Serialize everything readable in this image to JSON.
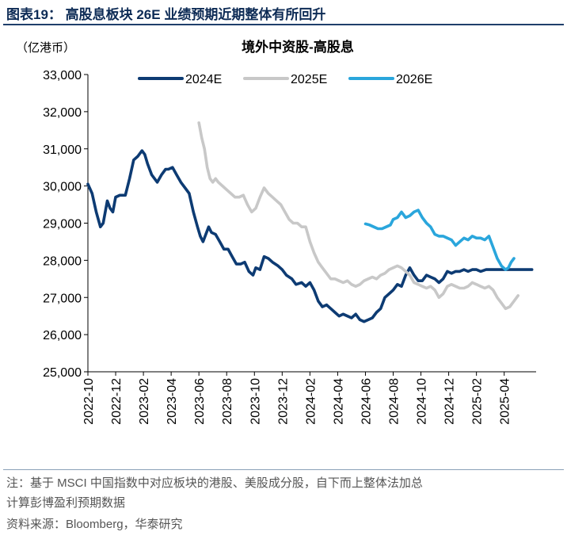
{
  "figure": {
    "title": "图表19：  高股息板块 26E 业绩预期近期整体有所回升",
    "note_line1": "注：基于 MSCI 中国指数中对应板块的港股、美股成分股，自下而上整体法加总",
    "note_line2": "计算彭博盈利预期数据",
    "source": "资料来源：Bloomberg，华泰研究"
  },
  "colors": {
    "s2024": "#0d3b73",
    "s2025": "#c8c8c8",
    "s2026": "#2aa6dc",
    "title": "#0d2b55"
  },
  "chart_data": {
    "type": "line",
    "title": "境外中资股-高股息",
    "ylabel": "（亿港币）",
    "ylim": [
      25000,
      33000
    ],
    "yticks": [
      "33,000",
      "32,000",
      "31,000",
      "30,000",
      "29,000",
      "28,000",
      "27,000",
      "26,000",
      "25,000"
    ],
    "ytick_values": [
      33000,
      32000,
      31000,
      30000,
      29000,
      28000,
      27000,
      26000,
      25000
    ],
    "xlim": [
      0,
      32.3
    ],
    "xticks": [
      "2022-10",
      "2022-12",
      "2023-02",
      "2023-04",
      "2023-06",
      "2023-08",
      "2023-10",
      "2023-12",
      "2024-02",
      "2024-04",
      "2024-06",
      "2024-08",
      "2024-10",
      "2024-12",
      "2025-02",
      "2025-04"
    ],
    "xtick_values": [
      0,
      2,
      4,
      6,
      8,
      10,
      12,
      14,
      16,
      18,
      20,
      22,
      24,
      26,
      28,
      30
    ],
    "legend_position": "top",
    "series": [
      {
        "name": "2024E",
        "points": [
          [
            0,
            30050
          ],
          [
            0.3,
            29800
          ],
          [
            0.6,
            29300
          ],
          [
            0.9,
            28900
          ],
          [
            1.1,
            29000
          ],
          [
            1.4,
            29600
          ],
          [
            1.6,
            29400
          ],
          [
            1.8,
            29300
          ],
          [
            2.0,
            29700
          ],
          [
            2.3,
            29750
          ],
          [
            2.7,
            29750
          ],
          [
            3.0,
            30200
          ],
          [
            3.3,
            30700
          ],
          [
            3.6,
            30800
          ],
          [
            3.9,
            30950
          ],
          [
            4.1,
            30850
          ],
          [
            4.3,
            30600
          ],
          [
            4.6,
            30300
          ],
          [
            5.0,
            30100
          ],
          [
            5.3,
            30300
          ],
          [
            5.6,
            30450
          ],
          [
            5.8,
            30450
          ],
          [
            6.1,
            30500
          ],
          [
            6.4,
            30300
          ],
          [
            6.7,
            30100
          ],
          [
            7.0,
            29950
          ],
          [
            7.3,
            29800
          ],
          [
            7.6,
            29300
          ],
          [
            7.9,
            28900
          ],
          [
            8.1,
            28650
          ],
          [
            8.3,
            28500
          ],
          [
            8.5,
            28700
          ],
          [
            8.7,
            28900
          ],
          [
            8.9,
            28750
          ],
          [
            9.2,
            28700
          ],
          [
            9.5,
            28500
          ],
          [
            9.8,
            28300
          ],
          [
            10.1,
            28300
          ],
          [
            10.4,
            28100
          ],
          [
            10.7,
            27900
          ],
          [
            11.0,
            27900
          ],
          [
            11.3,
            27950
          ],
          [
            11.6,
            27700
          ],
          [
            11.9,
            27600
          ],
          [
            12.1,
            27800
          ],
          [
            12.4,
            27750
          ],
          [
            12.7,
            28100
          ],
          [
            13.0,
            28050
          ],
          [
            13.3,
            27950
          ],
          [
            13.7,
            27850
          ],
          [
            14.0,
            27750
          ],
          [
            14.3,
            27600
          ],
          [
            14.7,
            27500
          ],
          [
            15.0,
            27350
          ],
          [
            15.4,
            27400
          ],
          [
            15.7,
            27300
          ],
          [
            16.0,
            27400
          ],
          [
            16.3,
            27200
          ],
          [
            16.6,
            26900
          ],
          [
            16.9,
            26750
          ],
          [
            17.2,
            26800
          ],
          [
            17.5,
            26700
          ],
          [
            17.8,
            26600
          ],
          [
            18.1,
            26500
          ],
          [
            18.4,
            26550
          ],
          [
            18.7,
            26500
          ],
          [
            19.0,
            26450
          ],
          [
            19.3,
            26550
          ],
          [
            19.6,
            26400
          ],
          [
            19.9,
            26350
          ],
          [
            20.2,
            26400
          ],
          [
            20.5,
            26450
          ],
          [
            20.8,
            26600
          ],
          [
            21.1,
            26700
          ],
          [
            21.4,
            27000
          ],
          [
            21.7,
            27100
          ],
          [
            22.0,
            27200
          ],
          [
            22.3,
            27350
          ],
          [
            22.6,
            27300
          ],
          [
            22.9,
            27600
          ],
          [
            23.2,
            27800
          ],
          [
            23.5,
            27600
          ],
          [
            23.8,
            27450
          ],
          [
            24.1,
            27450
          ],
          [
            24.4,
            27600
          ],
          [
            24.7,
            27550
          ],
          [
            25.0,
            27500
          ],
          [
            25.3,
            27400
          ],
          [
            25.6,
            27500
          ],
          [
            25.9,
            27700
          ],
          [
            26.2,
            27650
          ],
          [
            26.5,
            27700
          ],
          [
            26.8,
            27700
          ],
          [
            27.1,
            27750
          ],
          [
            27.4,
            27700
          ],
          [
            27.7,
            27750
          ],
          [
            28.0,
            27750
          ],
          [
            28.3,
            27700
          ],
          [
            28.7,
            27750
          ],
          [
            29.0,
            27750
          ],
          [
            29.5,
            27750
          ],
          [
            30.0,
            27750
          ],
          [
            30.5,
            27750
          ],
          [
            31.0,
            27750
          ],
          [
            31.5,
            27750
          ],
          [
            32.0,
            27750
          ]
        ]
      },
      {
        "name": "2025E",
        "points": [
          [
            8.0,
            31700
          ],
          [
            8.2,
            31300
          ],
          [
            8.4,
            31000
          ],
          [
            8.6,
            30500
          ],
          [
            8.8,
            30200
          ],
          [
            9.0,
            30100
          ],
          [
            9.2,
            30200
          ],
          [
            9.4,
            30100
          ],
          [
            9.7,
            30000
          ],
          [
            10.0,
            29900
          ],
          [
            10.3,
            29800
          ],
          [
            10.6,
            29700
          ],
          [
            10.9,
            29700
          ],
          [
            11.2,
            29750
          ],
          [
            11.5,
            29500
          ],
          [
            11.8,
            29300
          ],
          [
            12.1,
            29400
          ],
          [
            12.4,
            29700
          ],
          [
            12.7,
            29950
          ],
          [
            13.0,
            29800
          ],
          [
            13.3,
            29700
          ],
          [
            13.6,
            29600
          ],
          [
            13.9,
            29500
          ],
          [
            14.2,
            29300
          ],
          [
            14.5,
            29100
          ],
          [
            14.8,
            29000
          ],
          [
            15.1,
            29000
          ],
          [
            15.4,
            28900
          ],
          [
            15.7,
            28900
          ],
          [
            16.0,
            28500
          ],
          [
            16.3,
            28200
          ],
          [
            16.6,
            27950
          ],
          [
            16.9,
            27800
          ],
          [
            17.2,
            27650
          ],
          [
            17.5,
            27500
          ],
          [
            17.8,
            27500
          ],
          [
            18.1,
            27450
          ],
          [
            18.4,
            27400
          ],
          [
            18.7,
            27450
          ],
          [
            19.0,
            27350
          ],
          [
            19.3,
            27300
          ],
          [
            19.6,
            27350
          ],
          [
            19.9,
            27450
          ],
          [
            20.2,
            27500
          ],
          [
            20.5,
            27550
          ],
          [
            20.8,
            27500
          ],
          [
            21.1,
            27600
          ],
          [
            21.4,
            27650
          ],
          [
            21.7,
            27750
          ],
          [
            22.0,
            27800
          ],
          [
            22.3,
            27850
          ],
          [
            22.6,
            27800
          ],
          [
            22.9,
            27700
          ],
          [
            23.2,
            27600
          ],
          [
            23.5,
            27400
          ],
          [
            23.8,
            27350
          ],
          [
            24.1,
            27300
          ],
          [
            24.4,
            27250
          ],
          [
            24.7,
            27300
          ],
          [
            25.0,
            27200
          ],
          [
            25.3,
            27000
          ],
          [
            25.6,
            27100
          ],
          [
            25.9,
            27300
          ],
          [
            26.2,
            27350
          ],
          [
            26.5,
            27300
          ],
          [
            26.8,
            27250
          ],
          [
            27.1,
            27250
          ],
          [
            27.4,
            27300
          ],
          [
            27.7,
            27400
          ],
          [
            28.0,
            27350
          ],
          [
            28.3,
            27300
          ],
          [
            28.6,
            27250
          ],
          [
            28.9,
            27300
          ],
          [
            29.2,
            27200
          ],
          [
            29.5,
            27000
          ],
          [
            29.8,
            26850
          ],
          [
            30.1,
            26700
          ],
          [
            30.4,
            26750
          ],
          [
            30.7,
            26900
          ],
          [
            31.0,
            27050
          ]
        ]
      },
      {
        "name": "2026E",
        "points": [
          [
            20.0,
            28980
          ],
          [
            20.3,
            28950
          ],
          [
            20.6,
            28900
          ],
          [
            20.9,
            28850
          ],
          [
            21.2,
            28850
          ],
          [
            21.5,
            28900
          ],
          [
            21.8,
            28950
          ],
          [
            22.0,
            29100
          ],
          [
            22.3,
            29150
          ],
          [
            22.6,
            29300
          ],
          [
            22.9,
            29150
          ],
          [
            23.2,
            29200
          ],
          [
            23.5,
            29300
          ],
          [
            23.8,
            29350
          ],
          [
            24.1,
            29150
          ],
          [
            24.4,
            29000
          ],
          [
            24.7,
            28900
          ],
          [
            25.0,
            28700
          ],
          [
            25.3,
            28650
          ],
          [
            25.6,
            28650
          ],
          [
            25.9,
            28600
          ],
          [
            26.2,
            28550
          ],
          [
            26.5,
            28400
          ],
          [
            26.8,
            28500
          ],
          [
            27.1,
            28600
          ],
          [
            27.4,
            28550
          ],
          [
            27.7,
            28650
          ],
          [
            28.0,
            28600
          ],
          [
            28.3,
            28600
          ],
          [
            28.6,
            28550
          ],
          [
            28.9,
            28650
          ],
          [
            29.2,
            28350
          ],
          [
            29.5,
            28050
          ],
          [
            29.8,
            27850
          ],
          [
            30.1,
            27750
          ],
          [
            30.3,
            27800
          ],
          [
            30.5,
            27950
          ],
          [
            30.7,
            28050
          ]
        ]
      }
    ]
  }
}
